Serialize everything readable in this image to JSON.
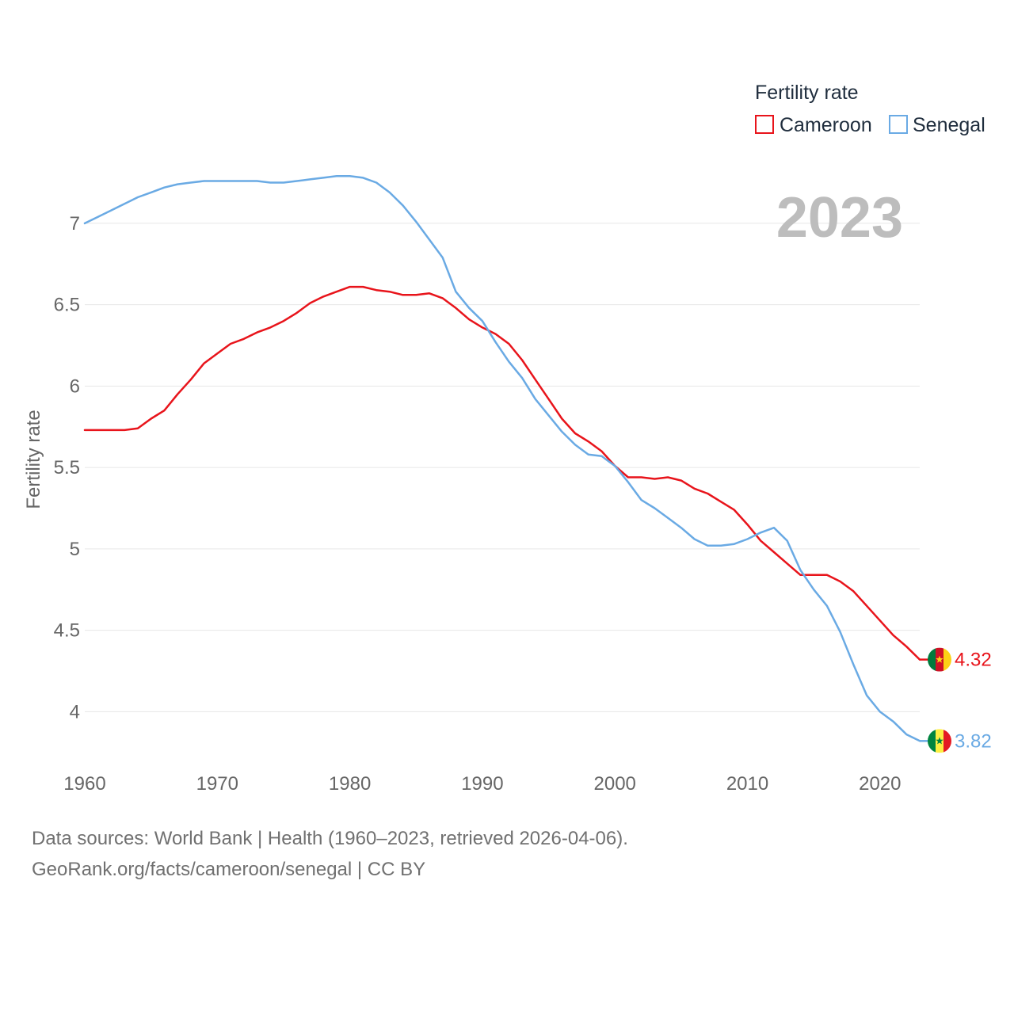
{
  "chart_data": {
    "type": "line",
    "legend_title": "Fertility rate",
    "ylabel": "Fertility rate",
    "xlabel": "",
    "year_overlay": "2023",
    "xlim": [
      1960,
      2023
    ],
    "ylim": [
      3.7,
      7.35
    ],
    "x_ticks": [
      1960,
      1970,
      1980,
      1990,
      2000,
      2010,
      2020
    ],
    "x_tick_labels": [
      "1960",
      "1970",
      "1980",
      "1990",
      "2000",
      "2010",
      "2020"
    ],
    "y_ticks": [
      4,
      4.5,
      5,
      5.5,
      6,
      6.5,
      7
    ],
    "y_tick_labels": [
      "4",
      "4.5",
      "5",
      "5.5",
      "6",
      "6.5",
      "7"
    ],
    "grid": true,
    "legend_position": "top-right",
    "x": [
      1960,
      1961,
      1962,
      1963,
      1964,
      1965,
      1966,
      1967,
      1968,
      1969,
      1970,
      1971,
      1972,
      1973,
      1974,
      1975,
      1976,
      1977,
      1978,
      1979,
      1980,
      1981,
      1982,
      1983,
      1984,
      1985,
      1986,
      1987,
      1988,
      1989,
      1990,
      1991,
      1992,
      1993,
      1994,
      1995,
      1996,
      1997,
      1998,
      1999,
      2000,
      2001,
      2002,
      2003,
      2004,
      2005,
      2006,
      2007,
      2008,
      2009,
      2010,
      2011,
      2012,
      2013,
      2014,
      2015,
      2016,
      2017,
      2018,
      2019,
      2020,
      2021,
      2022,
      2023
    ],
    "series": [
      {
        "name": "Cameroon",
        "color": "#e8141b",
        "end_label": "4.32",
        "flag": "cameroon-flag",
        "values": [
          5.73,
          5.73,
          5.73,
          5.73,
          5.74,
          5.8,
          5.85,
          5.95,
          6.04,
          6.14,
          6.2,
          6.26,
          6.29,
          6.33,
          6.36,
          6.4,
          6.45,
          6.51,
          6.55,
          6.58,
          6.61,
          6.61,
          6.59,
          6.58,
          6.56,
          6.56,
          6.57,
          6.54,
          6.48,
          6.41,
          6.36,
          6.32,
          6.26,
          6.16,
          6.04,
          5.92,
          5.8,
          5.71,
          5.66,
          5.6,
          5.51,
          5.44,
          5.44,
          5.43,
          5.44,
          5.42,
          5.37,
          5.34,
          5.29,
          5.24,
          5.15,
          5.05,
          4.98,
          4.91,
          4.84,
          4.84,
          4.84,
          4.8,
          4.74,
          4.65,
          4.56,
          4.47,
          4.4,
          4.32
        ]
      },
      {
        "name": "Senegal",
        "color": "#6aaae4",
        "end_label": "3.82",
        "flag": "senegal-flag",
        "values": [
          7.0,
          7.04,
          7.08,
          7.12,
          7.16,
          7.19,
          7.22,
          7.24,
          7.25,
          7.26,
          7.26,
          7.26,
          7.26,
          7.26,
          7.25,
          7.25,
          7.26,
          7.27,
          7.28,
          7.29,
          7.29,
          7.28,
          7.25,
          7.19,
          7.11,
          7.01,
          6.9,
          6.79,
          6.58,
          6.48,
          6.4,
          6.27,
          6.15,
          6.05,
          5.92,
          5.82,
          5.72,
          5.64,
          5.58,
          5.57,
          5.51,
          5.41,
          5.3,
          5.25,
          5.19,
          5.13,
          5.06,
          5.02,
          5.02,
          5.03,
          5.06,
          5.1,
          5.13,
          5.05,
          4.87,
          4.75,
          4.65,
          4.49,
          4.29,
          4.1,
          4.0,
          3.94,
          3.86,
          3.82
        ]
      }
    ]
  },
  "footer": {
    "line1": "Data sources: World Bank | Health (1960–2023, retrieved 2026-04-06).",
    "line2": "GeoRank.org/facts/cameroon/senegal | CC BY"
  }
}
